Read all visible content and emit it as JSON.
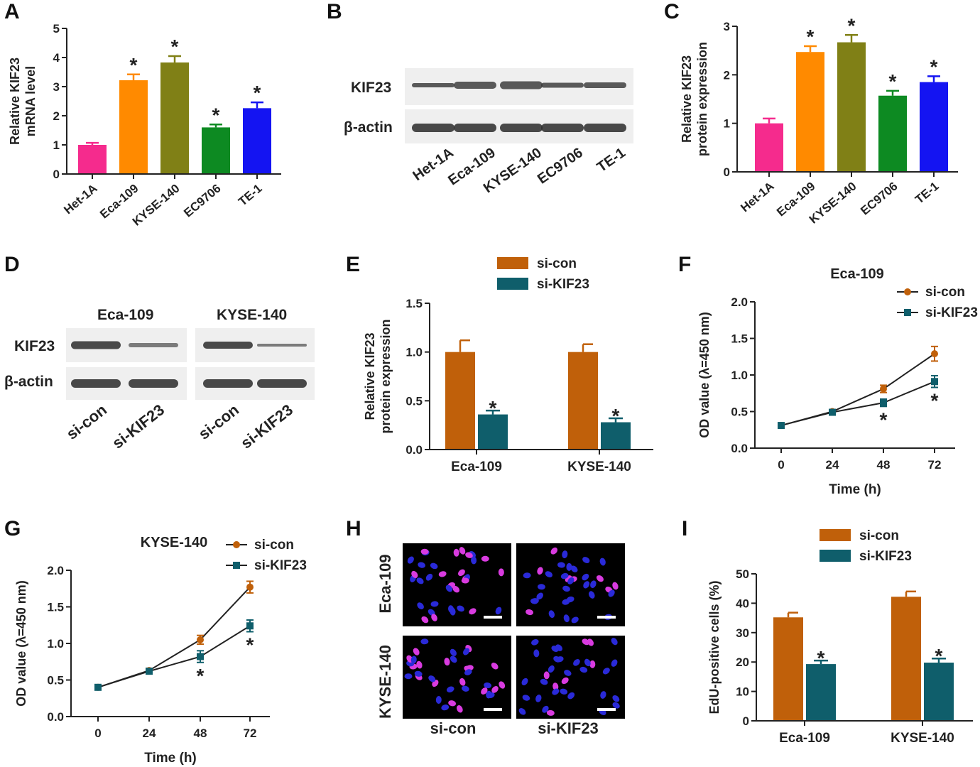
{
  "panel_labels": [
    "A",
    "B",
    "C",
    "D",
    "E",
    "F",
    "G",
    "H",
    "I"
  ],
  "colors": {
    "het1a": "#f52b8d",
    "eca109": "#ff8a00",
    "kyse140": "#808016",
    "ec9706": "#0d8a22",
    "te1": "#1414f2",
    "si_con": "#c0600a",
    "si_kif23": "#0f5e6b",
    "axis": "#222222"
  },
  "chart_data": [
    {
      "id": "A",
      "type": "bar",
      "categories": [
        "Het-1A",
        "Eca-109",
        "KYSE-140",
        "EC9706",
        "TE-1"
      ],
      "values": [
        1.0,
        3.22,
        3.83,
        1.6,
        2.26
      ],
      "errors": [
        0.07,
        0.2,
        0.22,
        0.1,
        0.2
      ],
      "significant": [
        false,
        true,
        true,
        true,
        true
      ],
      "ylabel": [
        "Relative KIF23",
        "mRNA level"
      ],
      "ylim": [
        0,
        5
      ],
      "yticks": [
        0,
        1,
        2,
        3,
        4,
        5
      ]
    },
    {
      "id": "C",
      "type": "bar",
      "categories": [
        "Het-1A",
        "Eca-109",
        "KYSE-140",
        "EC9706",
        "TE-1"
      ],
      "values": [
        1.0,
        2.47,
        2.67,
        1.57,
        1.85
      ],
      "errors": [
        0.1,
        0.12,
        0.15,
        0.1,
        0.12
      ],
      "significant": [
        false,
        true,
        true,
        true,
        true
      ],
      "ylabel": [
        "Relative KIF23",
        "protein expression"
      ],
      "ylim": [
        0,
        3
      ],
      "yticks": [
        0,
        1,
        2,
        3
      ]
    },
    {
      "id": "E",
      "type": "bar",
      "categories": [
        "Eca-109",
        "KYSE-140"
      ],
      "series": [
        {
          "name": "si-con",
          "values": [
            1.0,
            1.0
          ],
          "errors": [
            0.12,
            0.08
          ]
        },
        {
          "name": "si-KIF23",
          "values": [
            0.36,
            0.28
          ],
          "errors": [
            0.04,
            0.04
          ],
          "significant": [
            true,
            true
          ]
        }
      ],
      "ylabel": [
        "Relative KIF23",
        "protein expression"
      ],
      "ylim": [
        0,
        1.5
      ],
      "yticks": [
        "0.0",
        "0.5",
        "1.0",
        "1.5"
      ]
    },
    {
      "id": "F",
      "type": "line",
      "title": "Eca-109",
      "x": [
        0,
        24,
        48,
        72
      ],
      "series": [
        {
          "name": "si-con",
          "values": [
            0.31,
            0.5,
            0.81,
            1.29
          ],
          "errors": [
            0.02,
            0.02,
            0.05,
            0.1
          ]
        },
        {
          "name": "si-KIF23",
          "values": [
            0.31,
            0.49,
            0.62,
            0.91
          ],
          "errors": [
            0.02,
            0.02,
            0.05,
            0.08
          ],
          "significant": [
            false,
            false,
            true,
            true
          ]
        }
      ],
      "xlabel": "Time (h)",
      "ylabel": "OD value (λ=450 nm)",
      "ylim": [
        0,
        2
      ],
      "yticks": [
        "0.0",
        "0.5",
        "1.0",
        "1.5",
        "2.0"
      ]
    },
    {
      "id": "G",
      "type": "line",
      "title": "KYSE-140",
      "x": [
        0,
        24,
        48,
        72
      ],
      "series": [
        {
          "name": "si-con",
          "values": [
            0.4,
            0.63,
            1.05,
            1.77
          ],
          "errors": [
            0.02,
            0.03,
            0.06,
            0.08
          ]
        },
        {
          "name": "si-KIF23",
          "values": [
            0.4,
            0.62,
            0.82,
            1.24
          ],
          "errors": [
            0.02,
            0.03,
            0.08,
            0.08
          ],
          "significant": [
            false,
            false,
            true,
            true
          ]
        }
      ],
      "xlabel": "Time (h)",
      "ylabel": "OD value (λ=450 nm)",
      "ylim": [
        0,
        2
      ],
      "yticks": [
        "0.0",
        "0.5",
        "1.0",
        "1.5",
        "2.0"
      ]
    },
    {
      "id": "I",
      "type": "bar",
      "categories": [
        "Eca-109",
        "KYSE-140"
      ],
      "series": [
        {
          "name": "si-con",
          "values": [
            35.2,
            42.2
          ],
          "errors": [
            1.6,
            1.8
          ]
        },
        {
          "name": "si-KIF23",
          "values": [
            19.3,
            19.8
          ],
          "errors": [
            1.2,
            1.4
          ],
          "significant": [
            true,
            true
          ]
        }
      ],
      "ylabel": [
        "EdU-positive cells (%)"
      ],
      "ylim": [
        0,
        50
      ],
      "yticks": [
        0,
        10,
        20,
        30,
        40,
        50
      ]
    }
  ],
  "blot_B": {
    "rows": [
      "KIF23",
      "β-actin"
    ],
    "lanes": [
      "Het-1A",
      "Eca-109",
      "KYSE-140",
      "EC9706",
      "TE-1"
    ]
  },
  "blot_D": {
    "groups": [
      "Eca-109",
      "KYSE-140"
    ],
    "rows": [
      "KIF23",
      "β-actin"
    ],
    "lanes": [
      "si-con",
      "si-KIF23",
      "si-con",
      "si-KIF23"
    ]
  },
  "micro_H": {
    "rows": [
      "Eca-109",
      "KYSE-140"
    ],
    "cols": [
      "si-con",
      "si-KIF23"
    ]
  },
  "significance_mark": "*"
}
